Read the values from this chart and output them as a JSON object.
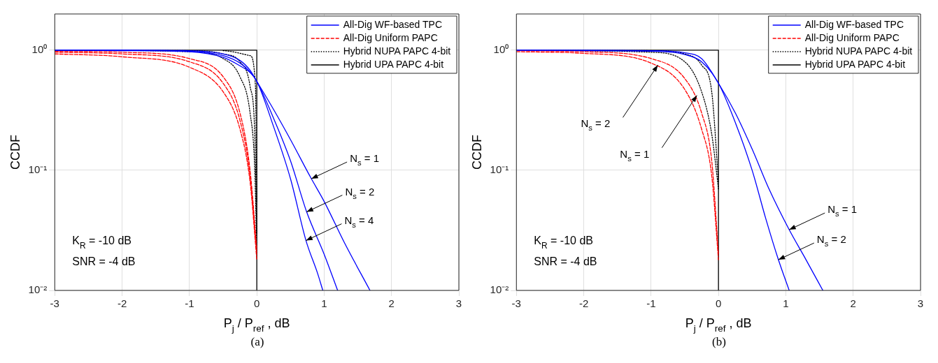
{
  "chart_data": [
    {
      "type": "line",
      "title": "(a)",
      "xlabel": "P$_{j}$ / P$_{ref}$ , dB",
      "ylabel": "CCDF",
      "log": "y",
      "grid": true,
      "legend": "top right",
      "xlim": [
        -3,
        3
      ],
      "xticks": [
        -3,
        -2,
        -1,
        0,
        1,
        2,
        3
      ],
      "ylim": [
        0.01,
        2
      ],
      "yticks": [
        {
          "value": 0.01,
          "label": "10⁻²"
        },
        {
          "value": 0.1,
          "label": "10⁻¹"
        },
        {
          "value": 1,
          "label": "10⁰"
        }
      ],
      "series": [
        {
          "name": "All-Dig WF-based TPC",
          "color": "#0000ff",
          "line_style": "solid",
          "x": [
            -3,
            -2,
            -1,
            -0.5,
            -0.25,
            -0.1,
            0,
            0.25,
            0.5,
            0.8,
            1.0,
            1.3,
            1.68
          ],
          "values": [
            1,
            1,
            0.99,
            0.93,
            0.82,
            0.68,
            0.55,
            0.32,
            0.18,
            0.087,
            0.055,
            0.025,
            0.01
          ]
        },
        {
          "color": "#0000ff",
          "line_style": "solid",
          "x": [
            -3,
            -2,
            -1,
            -0.5,
            -0.25,
            -0.1,
            0,
            0.25,
            0.5,
            0.74,
            1.0,
            1.2
          ],
          "values": [
            1,
            1,
            0.98,
            0.9,
            0.78,
            0.66,
            0.55,
            0.27,
            0.12,
            0.045,
            0.02,
            0.01
          ]
        },
        {
          "color": "#0000ff",
          "line_style": "solid",
          "x": [
            -3,
            -2,
            -1,
            -0.5,
            -0.25,
            -0.1,
            0,
            0.25,
            0.5,
            0.73,
            0.9,
            0.98
          ],
          "values": [
            1,
            0.99,
            0.97,
            0.87,
            0.74,
            0.65,
            0.55,
            0.23,
            0.085,
            0.026,
            0.014,
            0.01
          ]
        },
        {
          "name": "All-Dig Uniform PAPC",
          "color": "#ff0000",
          "line_style": "dashed",
          "x": [
            -3,
            -2,
            -1,
            -0.5,
            -0.25,
            -0.1,
            0
          ],
          "values": [
            0.93,
            0.88,
            0.72,
            0.45,
            0.22,
            0.08,
            0.018
          ]
        },
        {
          "color": "#ff0000",
          "line_style": "dashed",
          "x": [
            -3,
            -2,
            -1,
            -0.5,
            -0.25,
            -0.1,
            0
          ],
          "values": [
            0.96,
            0.93,
            0.8,
            0.53,
            0.26,
            0.09,
            0.02
          ]
        },
        {
          "color": "#ff0000",
          "line_style": "dashed",
          "x": [
            -3,
            -2,
            -1,
            -0.5,
            -0.25,
            -0.1,
            0
          ],
          "values": [
            0.98,
            0.96,
            0.85,
            0.6,
            0.3,
            0.1,
            0.022
          ]
        },
        {
          "name": "Hybrid NUPA PAPC 4-bit",
          "color": "#000000",
          "line_style": "dotted",
          "x": [
            -3,
            -1,
            -0.5,
            -0.25,
            -0.1,
            -0.03,
            0
          ],
          "values": [
            1,
            0.97,
            0.85,
            0.6,
            0.3,
            0.1,
            0.02
          ]
        },
        {
          "color": "#000000",
          "line_style": "dotted",
          "x": [
            -3,
            -1,
            -0.5,
            -0.25,
            -0.1,
            -0.03,
            0
          ],
          "values": [
            1,
            0.99,
            0.93,
            0.8,
            0.5,
            0.2,
            0.03
          ]
        },
        {
          "color": "#000000",
          "line_style": "dotted",
          "x": [
            -0.5,
            -0.1,
            -0.02,
            0
          ],
          "values": [
            0.99,
            0.9,
            0.5,
            0.055
          ]
        },
        {
          "name": "Hybrid UPA PAPC 4-bit",
          "color": "#000000",
          "line_style": "solid",
          "x": [
            -3,
            0,
            0
          ],
          "values": [
            1,
            1,
            0.01
          ]
        }
      ],
      "annotations": [
        "K$_{R}$ = -10 dB",
        "SNR = -4 dB",
        {
          "text": "N$_{s}$ = 1",
          "x": 0.81,
          "y": 0.085
        },
        {
          "text": "N$_{s}$ = 2",
          "x": 0.74,
          "y": 0.045
        },
        {
          "text": "N$_{s}$ = 4",
          "x": 0.73,
          "y": 0.026
        }
      ]
    },
    {
      "type": "line",
      "title": "(b)",
      "xlabel": "P$_{j}$ / P$_{ref}$ , dB",
      "ylabel": "CCDF",
      "log": "y",
      "grid": true,
      "legend": "top right",
      "xlim": [
        -3,
        3
      ],
      "xticks": [
        -3,
        -2,
        -1,
        0,
        1,
        2,
        3
      ],
      "ylim": [
        0.01,
        2
      ],
      "yticks": [
        {
          "value": 0.01,
          "label": "10⁻²"
        },
        {
          "value": 0.1,
          "label": "10⁻¹"
        },
        {
          "value": 1,
          "label": "10⁰"
        }
      ],
      "series": [
        {
          "name": "All-Dig WF-based TPC",
          "color": "#0000ff",
          "line_style": "solid",
          "x": [
            -3,
            -2,
            -1,
            -0.5,
            -0.25,
            0,
            0.25,
            0.5,
            0.75,
            1.05,
            1.3,
            1.55
          ],
          "values": [
            1,
            1,
            0.99,
            0.95,
            0.85,
            0.53,
            0.3,
            0.15,
            0.07,
            0.032,
            0.018,
            0.01
          ]
        },
        {
          "color": "#0000ff",
          "line_style": "solid",
          "x": [
            -3,
            -2,
            -1,
            -0.5,
            -0.25,
            0,
            0.25,
            0.5,
            0.7,
            0.89,
            1.05
          ],
          "values": [
            1,
            0.99,
            0.98,
            0.92,
            0.8,
            0.53,
            0.25,
            0.1,
            0.04,
            0.018,
            0.01
          ]
        },
        {
          "name": "All-Dig Uniform PAPC",
          "color": "#ff0000",
          "line_style": "dashed",
          "x": [
            -3,
            -2,
            -1,
            -0.5,
            -0.25,
            -0.1,
            0
          ],
          "values": [
            0.97,
            0.94,
            0.78,
            0.47,
            0.22,
            0.09,
            0.018
          ]
        },
        {
          "color": "#ff0000",
          "line_style": "dashed",
          "x": [
            -3,
            -2,
            -1,
            -0.5,
            -0.25,
            -0.1,
            0
          ],
          "values": [
            0.99,
            0.97,
            0.85,
            0.58,
            0.3,
            0.12,
            0.02
          ]
        },
        {
          "name": "Hybrid NUPA PAPC 4-bit",
          "color": "#000000",
          "line_style": "dotted",
          "x": [
            -3,
            -1,
            -0.5,
            -0.25,
            -0.1,
            0
          ],
          "values": [
            1,
            0.96,
            0.8,
            0.45,
            0.2,
            0.07
          ]
        },
        {
          "color": "#000000",
          "line_style": "dotted",
          "x": [
            -3,
            -1,
            -0.5,
            -0.25,
            -0.1,
            0
          ],
          "values": [
            1,
            0.99,
            0.93,
            0.75,
            0.45,
            0.08
          ]
        },
        {
          "name": "Hybrid UPA PAPC 4-bit",
          "color": "#000000",
          "line_style": "solid",
          "x": [
            -3,
            0,
            0
          ],
          "values": [
            1,
            1,
            0.01
          ]
        }
      ],
      "annotations": [
        "K$_{R}$ = -10 dB",
        "SNR = -4 dB",
        {
          "text": "N$_{s}$ = 2",
          "x": -0.9,
          "y": 0.75
        },
        {
          "text": "N$_{s}$ = 1",
          "x": -0.32,
          "y": 0.42
        },
        {
          "text": "N$_{s}$ = 1",
          "x": 1.05,
          "y": 0.032
        },
        {
          "text": "N$_{s}$ = 2",
          "x": 0.89,
          "y": 0.018
        }
      ]
    }
  ]
}
